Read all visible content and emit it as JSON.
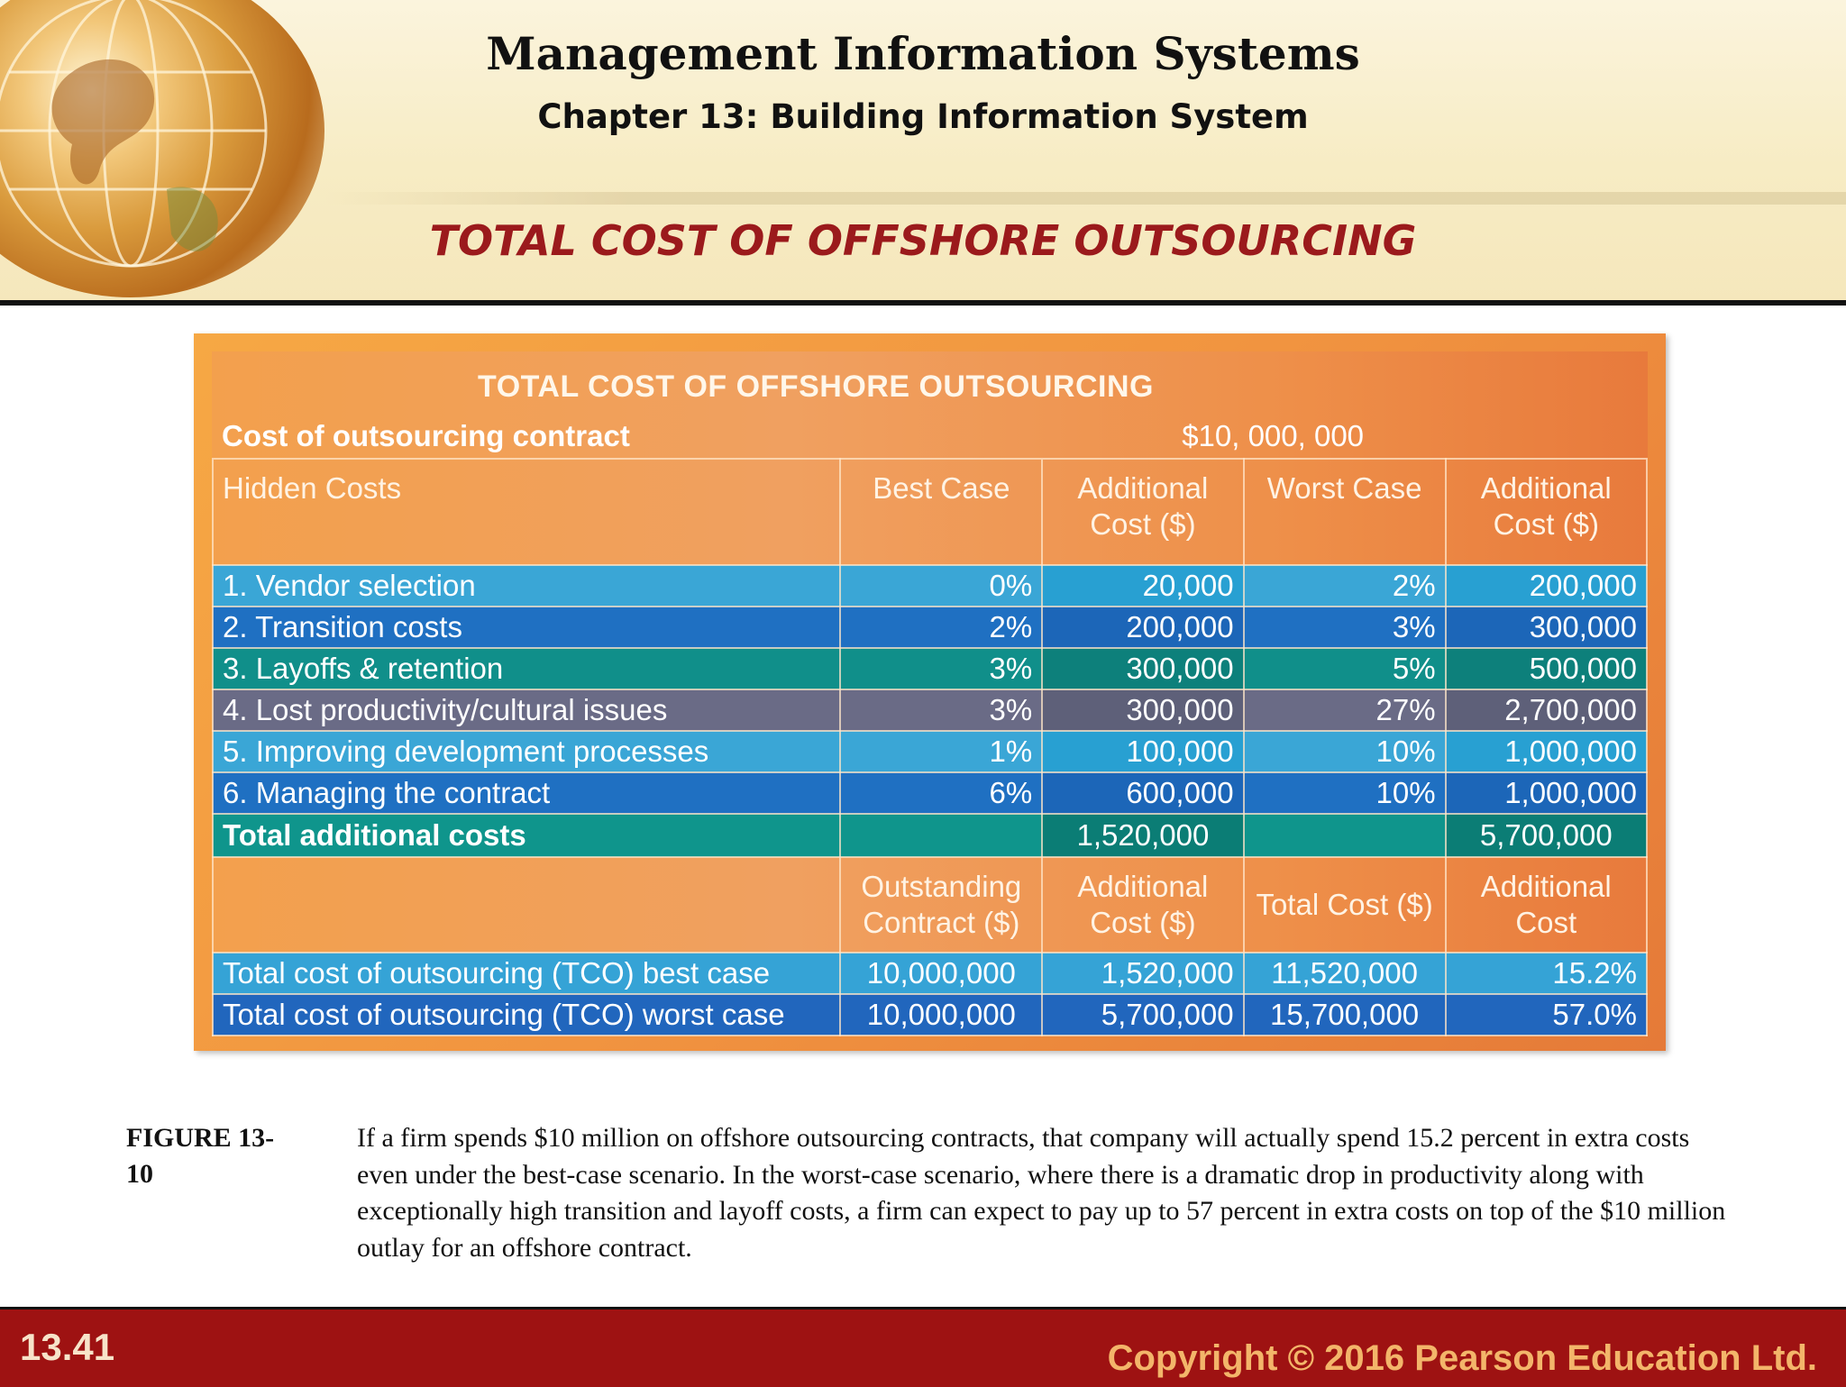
{
  "header": {
    "title": "Management Information Systems",
    "subtitle": "Chapter 13: Building Information System",
    "slide_heading": "TOTAL COST OF OFFSHORE OUTSOURCING"
  },
  "table": {
    "title": "TOTAL COST OF OFFSHORE OUTSOURCING",
    "contract_label": "Cost of outsourcing contract",
    "contract_amount": "$10, 000, 000",
    "headers": {
      "hidden": "Hidden Costs",
      "best": "Best Case",
      "add1_line1": "Additional",
      "add1_line2": "Cost ($)",
      "worst": "Worst Case",
      "add2_line1": "Additional",
      "add2_line2": "Cost ($)"
    },
    "rows": [
      {
        "label": "1. Vendor selection",
        "best": "0%",
        "best_cost": "20,000",
        "worst": "2%",
        "worst_cost": "200,000"
      },
      {
        "label": "2. Transition costs",
        "best": "2%",
        "best_cost": "200,000",
        "worst": "3%",
        "worst_cost": "300,000"
      },
      {
        "label": "3. Layoffs & retention",
        "best": "3%",
        "best_cost": "300,000",
        "worst": "5%",
        "worst_cost": "500,000"
      },
      {
        "label": "4. Lost productivity/cultural issues",
        "best": "3%",
        "best_cost": "300,000",
        "worst": "27%",
        "worst_cost": "2,700,000"
      },
      {
        "label": "5. Improving development processes",
        "best": "1%",
        "best_cost": "100,000",
        "worst": "10%",
        "worst_cost": "1,000,000"
      },
      {
        "label": "6. Managing the contract",
        "best": "6%",
        "best_cost": "600,000",
        "worst": "10%",
        "worst_cost": "1,000,000"
      }
    ],
    "total": {
      "label": "Total additional costs",
      "best_cost": "1,520,000",
      "worst_cost": "5,700,000"
    },
    "headers2": {
      "outstanding_line1": "Outstanding",
      "outstanding_line2": "Contract ($)",
      "additional_line1": "Additional",
      "additional_line2": "Cost ($)",
      "total_cost": "Total Cost ($)",
      "add_line1": "Additional",
      "add_line2": "Cost"
    },
    "tco": [
      {
        "label": "Total cost of outsourcing (TCO) best case",
        "outstanding": "10,000,000",
        "additional": "1,520,000",
        "total": "11,520,000",
        "pct": "15.2%"
      },
      {
        "label": "Total cost of outsourcing (TCO) worst case",
        "outstanding": "10,000,000",
        "additional": "5,700,000",
        "total": "15,700,000",
        "pct": "57.0%"
      }
    ]
  },
  "caption": {
    "label_line1": "FIGURE 13-",
    "label_line2": "10",
    "text": "If a firm spends $10 million on offshore outsourcing contracts, that company will actually spend 15.2 percent in extra costs even under the best-case scenario. In the worst-case scenario, where there is a dramatic drop in productivity along with exceptionally high transition and layoff costs, a firm can expect to pay up to 57 percent in extra costs on top of the $10 million outlay for an offshore contract."
  },
  "footer": {
    "slide_number": "13.41",
    "copyright": "Copyright © 2016 Pearson Education Ltd."
  }
}
